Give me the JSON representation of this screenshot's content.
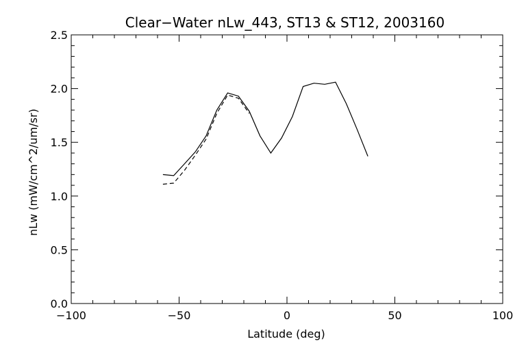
{
  "chart_data": {
    "type": "line",
    "title": "Clear−Water nLw_443, ST13 & ST12, 2003160",
    "xlabel": "Latitude (deg)",
    "ylabel": "nLw (mW/cm^2/um/sr)",
    "xlim": [
      -100,
      100
    ],
    "ylim": [
      0.0,
      2.5
    ],
    "x_ticks": [
      -100,
      -50,
      0,
      50,
      100
    ],
    "x_tick_labels": [
      "−100",
      "−50",
      "0",
      "50",
      "100"
    ],
    "y_ticks": [
      0.0,
      0.5,
      1.0,
      1.5,
      2.0,
      2.5
    ],
    "y_tick_labels": [
      "0.0",
      "0.5",
      "1.0",
      "1.5",
      "2.0",
      "2.5"
    ],
    "grid": false,
    "series": [
      {
        "style": "solid",
        "color": "#000000",
        "x": [
          -57.5,
          -52.5,
          -47.5,
          -42.5,
          -37.5,
          -32.5,
          -27.5,
          -22.5,
          -17.5,
          -12.5,
          -7.5,
          -2.5,
          2.5,
          7.5,
          12.5,
          17.5,
          22.5,
          27.5,
          32.5,
          37.5
        ],
        "y": [
          1.2,
          1.19,
          1.3,
          1.41,
          1.56,
          1.8,
          1.96,
          1.93,
          1.79,
          1.56,
          1.4,
          1.54,
          1.74,
          2.02,
          2.05,
          2.04,
          2.06,
          1.86,
          1.62,
          1.37
        ]
      },
      {
        "style": "dashed",
        "color": "#000000",
        "x": [
          -57.5,
          -52.5,
          -47.5,
          -42.5,
          -37.5,
          -32.5,
          -27.5,
          -22.5,
          -17.5
        ],
        "y": [
          1.11,
          1.12,
          1.24,
          1.38,
          1.53,
          1.77,
          1.94,
          1.91,
          1.77
        ]
      }
    ]
  }
}
